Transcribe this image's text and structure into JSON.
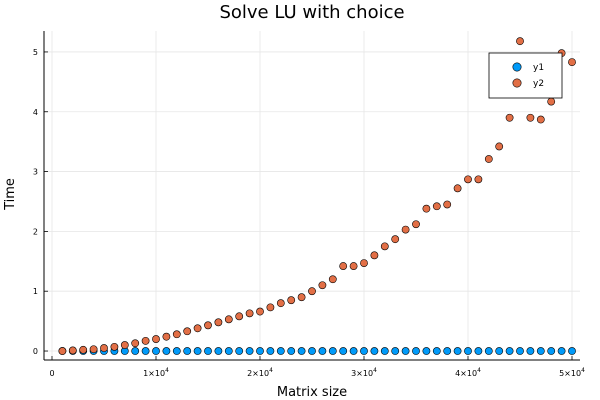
{
  "chart_data": {
    "type": "scatter",
    "title": "Solve LU with choice",
    "xlabel": "Matrix size",
    "ylabel": "Time",
    "xlim": [
      0,
      50000
    ],
    "ylim": [
      -0.15,
      5.35
    ],
    "x_ticks": [
      {
        "value": 0,
        "label": "0",
        "exp": ""
      },
      {
        "value": 10000,
        "label": "1×10",
        "exp": "4"
      },
      {
        "value": 20000,
        "label": "2×10",
        "exp": "4"
      },
      {
        "value": 30000,
        "label": "3×10",
        "exp": "4"
      },
      {
        "value": 40000,
        "label": "4×10",
        "exp": "4"
      },
      {
        "value": 50000,
        "label": "5×10",
        "exp": "4"
      }
    ],
    "y_ticks": [
      {
        "value": 0,
        "label": "0"
      },
      {
        "value": 1,
        "label": "1"
      },
      {
        "value": 2,
        "label": "2"
      },
      {
        "value": 3,
        "label": "3"
      },
      {
        "value": 4,
        "label": "4"
      },
      {
        "value": 5,
        "label": "5"
      }
    ],
    "grid": true,
    "legend_position": "top-right",
    "x": [
      1000,
      2000,
      3000,
      4000,
      5000,
      6000,
      7000,
      8000,
      9000,
      10000,
      11000,
      12000,
      13000,
      14000,
      15000,
      16000,
      17000,
      18000,
      19000,
      20000,
      21000,
      22000,
      23000,
      24000,
      25000,
      26000,
      27000,
      28000,
      29000,
      30000,
      31000,
      32000,
      33000,
      34000,
      35000,
      36000,
      37000,
      38000,
      39000,
      40000,
      41000,
      42000,
      43000,
      44000,
      45000,
      46000,
      47000,
      48000,
      49000,
      50000
    ],
    "series": [
      {
        "name": "y1",
        "color": "#009af9",
        "values": [
          0,
          0,
          0,
          0,
          0,
          0,
          0,
          0,
          0,
          0,
          0,
          0,
          0,
          0,
          0,
          0,
          0,
          0,
          0,
          0,
          0,
          0,
          0,
          0,
          0,
          0,
          0,
          0,
          0,
          0,
          0,
          0,
          0,
          0,
          0,
          0,
          0,
          0,
          0,
          0,
          0,
          0,
          0,
          0,
          0,
          0,
          0,
          0,
          0,
          0
        ]
      },
      {
        "name": "y2",
        "color": "#e26f46",
        "values": [
          0,
          0.01,
          0.02,
          0.03,
          0.05,
          0.07,
          0.1,
          0.13,
          0.17,
          0.2,
          0.24,
          0.28,
          0.33,
          0.38,
          0.43,
          0.48,
          0.53,
          0.58,
          0.63,
          0.66,
          0.73,
          0.8,
          0.85,
          0.9,
          1.0,
          1.1,
          1.2,
          1.42,
          1.42,
          1.47,
          1.6,
          1.75,
          1.87,
          2.03,
          2.12,
          2.38,
          2.42,
          2.45,
          2.72,
          2.87,
          2.87,
          3.21,
          3.42,
          3.9,
          5.18,
          3.9,
          3.87,
          4.17,
          4.98,
          4.83
        ]
      }
    ]
  }
}
